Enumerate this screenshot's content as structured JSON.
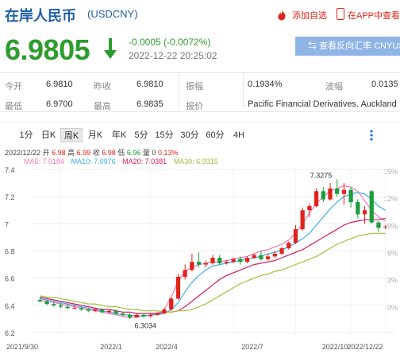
{
  "header": {
    "title": "在岸人民币",
    "code": "(USDCNY)",
    "favorite_label": "添加自选",
    "app_label": "在APP中查看"
  },
  "quote": {
    "price": "6.9805",
    "change": "-0.0005 (-0.0072%)",
    "time": "2022-12-22 20:25:02",
    "reverse_button": "查看反向汇率 CNYUSD"
  },
  "stats": {
    "open_label": "今开",
    "open": "6.9810",
    "prev_close_label": "昨收",
    "prev_close": "6.9810",
    "amplitude_label": "振幅",
    "amplitude": "0.1934%",
    "volatility_label": "波幅",
    "volatility": "0.0135",
    "low_label": "最低",
    "low": "6.9700",
    "high_label": "最高",
    "high": "6.9835",
    "quoter_label": "报价",
    "quoter": "Pacific Financial Derivatives. Auckland"
  },
  "tabs": [
    "1分",
    "日K",
    "周K",
    "月K",
    "年K",
    "5分",
    "15分",
    "30分",
    "60分",
    "4H"
  ],
  "active_tab": "周K",
  "info": {
    "date": "2022/12/22",
    "open_label": "开",
    "open": "6.98",
    "high_label": "高",
    "high": "6.99",
    "close_label": "收",
    "close": "6.98",
    "low_label": "低",
    "low": "6.96",
    "volume_label": "量",
    "volume": "0",
    "pct": "0.13%"
  },
  "ma": {
    "ma5": "MA5: 7.0184",
    "ma10": "MA10: 7.0976",
    "ma20": "MA20: 7.0381",
    "ma30": "MA30: 6.9315"
  },
  "colors": {
    "up": "#e2231a",
    "down": "#1a9e3a",
    "ma5": "#f07ab0",
    "ma10": "#3cb0e8",
    "ma20": "#d81b60",
    "ma30": "#9ec23c",
    "price_down": "#2e9c2e",
    "title": "#1f5fa8"
  },
  "chart_data": {
    "type": "candlestick",
    "interval": "weekly",
    "ylim": [
      6.2,
      7.4
    ],
    "yticks": [
      6.2,
      6.4,
      6.6,
      6.8,
      7,
      7.2,
      7.4
    ],
    "ytick_labels": [
      "6.2",
      "6.4",
      "6.6",
      "6.8",
      "7",
      "7.2",
      "7.4"
    ],
    "pct_ticks": [
      "15%",
      "12%",
      "9%",
      "6%",
      "3%",
      "0%"
    ],
    "xtick_labels": [
      "2021/9/30",
      "2022/1",
      "2022/4",
      "2022/7",
      "2022/10",
      "2022/12/22"
    ],
    "annotations": [
      {
        "text": "7.3275",
        "value": 7.3275
      },
      {
        "text": "6.3034",
        "value": 6.3034
      }
    ],
    "series": [
      {
        "name": "MA5",
        "values": [
          6.44,
          6.43,
          6.42,
          6.41,
          6.4,
          6.39,
          6.38,
          6.37,
          6.36,
          6.35,
          6.34,
          6.33,
          6.32,
          6.31,
          6.32,
          6.32,
          6.33,
          6.34,
          6.37,
          6.46,
          6.58,
          6.65,
          6.68,
          6.7,
          6.71,
          6.72,
          6.72,
          6.73,
          6.74,
          6.75,
          6.76,
          6.78,
          6.8,
          6.81,
          6.83,
          6.85,
          6.88,
          6.93,
          7.0,
          7.08,
          7.15,
          7.2,
          7.24,
          7.26,
          7.28,
          7.27,
          7.24,
          7.17,
          7.1,
          7.05,
          7.02
        ]
      },
      {
        "name": "MA10",
        "values": [
          6.45,
          6.44,
          6.43,
          6.42,
          6.41,
          6.4,
          6.39,
          6.38,
          6.37,
          6.36,
          6.35,
          6.34,
          6.33,
          6.33,
          6.32,
          6.32,
          6.33,
          6.33,
          6.34,
          6.37,
          6.42,
          6.5,
          6.57,
          6.62,
          6.66,
          6.69,
          6.7,
          6.71,
          6.72,
          6.73,
          6.74,
          6.75,
          6.76,
          6.78,
          6.79,
          6.81,
          6.83,
          6.86,
          6.89,
          6.93,
          6.99,
          7.05,
          7.11,
          7.16,
          7.2,
          7.22,
          7.23,
          7.22,
          7.18,
          7.13,
          7.1
        ]
      },
      {
        "name": "MA20",
        "values": [
          6.46,
          6.45,
          6.44,
          6.43,
          6.42,
          6.41,
          6.4,
          6.39,
          6.38,
          6.37,
          6.37,
          6.36,
          6.35,
          6.35,
          6.34,
          6.34,
          6.34,
          6.34,
          6.35,
          6.35,
          6.36,
          6.39,
          6.43,
          6.47,
          6.51,
          6.55,
          6.59,
          6.62,
          6.64,
          6.66,
          6.68,
          6.7,
          6.71,
          6.72,
          6.73,
          6.75,
          6.77,
          6.79,
          6.81,
          6.84,
          6.87,
          6.9,
          6.93,
          6.96,
          6.99,
          7.01,
          7.02,
          7.03,
          7.03,
          7.03,
          7.04
        ]
      },
      {
        "name": "MA30",
        "values": [
          6.47,
          6.46,
          6.46,
          6.45,
          6.44,
          6.43,
          6.42,
          6.41,
          6.41,
          6.4,
          6.39,
          6.39,
          6.38,
          6.37,
          6.37,
          6.36,
          6.36,
          6.36,
          6.35,
          6.35,
          6.36,
          6.36,
          6.37,
          6.39,
          6.41,
          6.44,
          6.47,
          6.5,
          6.53,
          6.56,
          6.58,
          6.6,
          6.62,
          6.63,
          6.65,
          6.66,
          6.68,
          6.7,
          6.72,
          6.74,
          6.76,
          6.79,
          6.82,
          6.85,
          6.87,
          6.89,
          6.91,
          6.92,
          6.93,
          6.93,
          6.93
        ]
      }
    ],
    "candles": [
      {
        "o": 6.44,
        "h": 6.46,
        "l": 6.42,
        "c": 6.43
      },
      {
        "o": 6.43,
        "h": 6.44,
        "l": 6.4,
        "c": 6.41
      },
      {
        "o": 6.41,
        "h": 6.43,
        "l": 6.39,
        "c": 6.4
      },
      {
        "o": 6.4,
        "h": 6.42,
        "l": 6.38,
        "c": 6.39
      },
      {
        "o": 6.39,
        "h": 6.41,
        "l": 6.37,
        "c": 6.38
      },
      {
        "o": 6.38,
        "h": 6.4,
        "l": 6.37,
        "c": 6.38
      },
      {
        "o": 6.38,
        "h": 6.39,
        "l": 6.36,
        "c": 6.37
      },
      {
        "o": 6.37,
        "h": 6.38,
        "l": 6.35,
        "c": 6.36
      },
      {
        "o": 6.36,
        "h": 6.38,
        "l": 6.35,
        "c": 6.37
      },
      {
        "o": 6.37,
        "h": 6.38,
        "l": 6.34,
        "c": 6.35
      },
      {
        "o": 6.35,
        "h": 6.37,
        "l": 6.34,
        "c": 6.36
      },
      {
        "o": 6.36,
        "h": 6.37,
        "l": 6.33,
        "c": 6.34
      },
      {
        "o": 6.34,
        "h": 6.35,
        "l": 6.32,
        "c": 6.33
      },
      {
        "o": 6.33,
        "h": 6.34,
        "l": 6.3,
        "c": 6.31
      },
      {
        "o": 6.31,
        "h": 6.34,
        "l": 6.31,
        "c": 6.33
      },
      {
        "o": 6.33,
        "h": 6.34,
        "l": 6.31,
        "c": 6.32
      },
      {
        "o": 6.32,
        "h": 6.34,
        "l": 6.31,
        "c": 6.33
      },
      {
        "o": 6.33,
        "h": 6.35,
        "l": 6.33,
        "c": 6.34
      },
      {
        "o": 6.34,
        "h": 6.38,
        "l": 6.34,
        "c": 6.37
      },
      {
        "o": 6.37,
        "h": 6.46,
        "l": 6.36,
        "c": 6.45
      },
      {
        "o": 6.45,
        "h": 6.63,
        "l": 6.44,
        "c": 6.61
      },
      {
        "o": 6.61,
        "h": 6.7,
        "l": 6.59,
        "c": 6.66
      },
      {
        "o": 6.66,
        "h": 6.78,
        "l": 6.65,
        "c": 6.72
      },
      {
        "o": 6.72,
        "h": 6.79,
        "l": 6.68,
        "c": 6.7
      },
      {
        "o": 6.7,
        "h": 6.73,
        "l": 6.68,
        "c": 6.71
      },
      {
        "o": 6.71,
        "h": 6.77,
        "l": 6.7,
        "c": 6.75
      },
      {
        "o": 6.75,
        "h": 6.77,
        "l": 6.7,
        "c": 6.71
      },
      {
        "o": 6.71,
        "h": 6.73,
        "l": 6.7,
        "c": 6.72
      },
      {
        "o": 6.72,
        "h": 6.75,
        "l": 6.71,
        "c": 6.74
      },
      {
        "o": 6.74,
        "h": 6.76,
        "l": 6.7,
        "c": 6.72
      },
      {
        "o": 6.72,
        "h": 6.76,
        "l": 6.71,
        "c": 6.75
      },
      {
        "o": 6.75,
        "h": 6.78,
        "l": 6.74,
        "c": 6.77
      },
      {
        "o": 6.77,
        "h": 6.8,
        "l": 6.73,
        "c": 6.74
      },
      {
        "o": 6.74,
        "h": 6.78,
        "l": 6.73,
        "c": 6.76
      },
      {
        "o": 6.76,
        "h": 6.8,
        "l": 6.75,
        "c": 6.78
      },
      {
        "o": 6.78,
        "h": 6.83,
        "l": 6.77,
        "c": 6.82
      },
      {
        "o": 6.82,
        "h": 6.87,
        "l": 6.81,
        "c": 6.86
      },
      {
        "o": 6.86,
        "h": 6.99,
        "l": 6.85,
        "c": 6.96
      },
      {
        "o": 6.96,
        "h": 7.12,
        "l": 6.95,
        "c": 7.1
      },
      {
        "o": 7.1,
        "h": 7.15,
        "l": 7.05,
        "c": 7.13
      },
      {
        "o": 7.13,
        "h": 7.26,
        "l": 7.12,
        "c": 7.24
      },
      {
        "o": 7.24,
        "h": 7.27,
        "l": 7.16,
        "c": 7.18
      },
      {
        "o": 7.18,
        "h": 7.3,
        "l": 7.17,
        "c": 7.26
      },
      {
        "o": 7.26,
        "h": 7.3275,
        "l": 7.2,
        "c": 7.22
      },
      {
        "o": 7.22,
        "h": 7.3,
        "l": 7.14,
        "c": 7.25
      },
      {
        "o": 7.25,
        "h": 7.27,
        "l": 7.12,
        "c": 7.16
      },
      {
        "o": 7.16,
        "h": 7.18,
        "l": 7.04,
        "c": 7.07
      },
      {
        "o": 7.07,
        "h": 7.13,
        "l": 7.0,
        "c": 7.1
      },
      {
        "o": 7.24,
        "h": 7.25,
        "l": 7.0,
        "c": 7.01
      },
      {
        "o": 7.01,
        "h": 7.02,
        "l": 6.94,
        "c": 6.97
      },
      {
        "o": 6.98,
        "h": 6.99,
        "l": 6.96,
        "c": 6.98
      }
    ]
  }
}
